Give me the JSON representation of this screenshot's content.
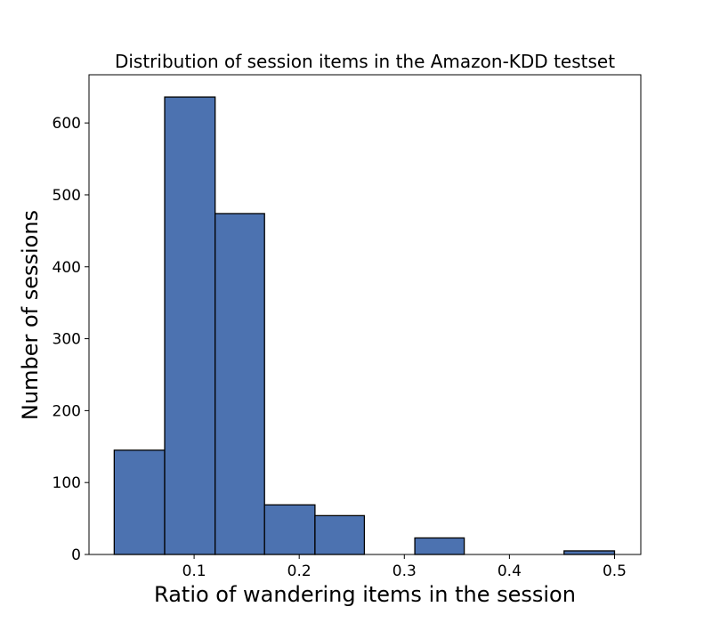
{
  "chart_data": {
    "type": "bar",
    "title": "Distribution of session items in the Amazon-KDD testset",
    "xlabel": "Ratio of wandering items in the session",
    "ylabel": "Number of sessions",
    "xlim": [
      0.0,
      0.525
    ],
    "ylim": [
      0,
      667
    ],
    "x_ticks": [
      0.1,
      0.2,
      0.3,
      0.4,
      0.5
    ],
    "x_tick_labels": [
      "0.1",
      "0.2",
      "0.3",
      "0.4",
      "0.5"
    ],
    "y_ticks": [
      0,
      100,
      200,
      300,
      400,
      500,
      600
    ],
    "y_tick_labels": [
      "0",
      "100",
      "200",
      "300",
      "400",
      "500",
      "600"
    ],
    "bins": [
      {
        "x0": 0.024,
        "x1": 0.072,
        "count": 145
      },
      {
        "x0": 0.072,
        "x1": 0.12,
        "count": 636
      },
      {
        "x0": 0.12,
        "x1": 0.167,
        "count": 474
      },
      {
        "x0": 0.167,
        "x1": 0.215,
        "count": 69
      },
      {
        "x0": 0.215,
        "x1": 0.262,
        "count": 54
      },
      {
        "x0": 0.262,
        "x1": 0.31,
        "count": 0
      },
      {
        "x0": 0.31,
        "x1": 0.357,
        "count": 23
      },
      {
        "x0": 0.357,
        "x1": 0.405,
        "count": 0
      },
      {
        "x0": 0.405,
        "x1": 0.452,
        "count": 0
      },
      {
        "x0": 0.452,
        "x1": 0.5,
        "count": 5
      }
    ],
    "colors": {
      "bar_fill": "#4c72b0",
      "bar_edge": "#000000",
      "axes": "#000000",
      "background": "#ffffff"
    },
    "grid": false,
    "legend": "none"
  }
}
